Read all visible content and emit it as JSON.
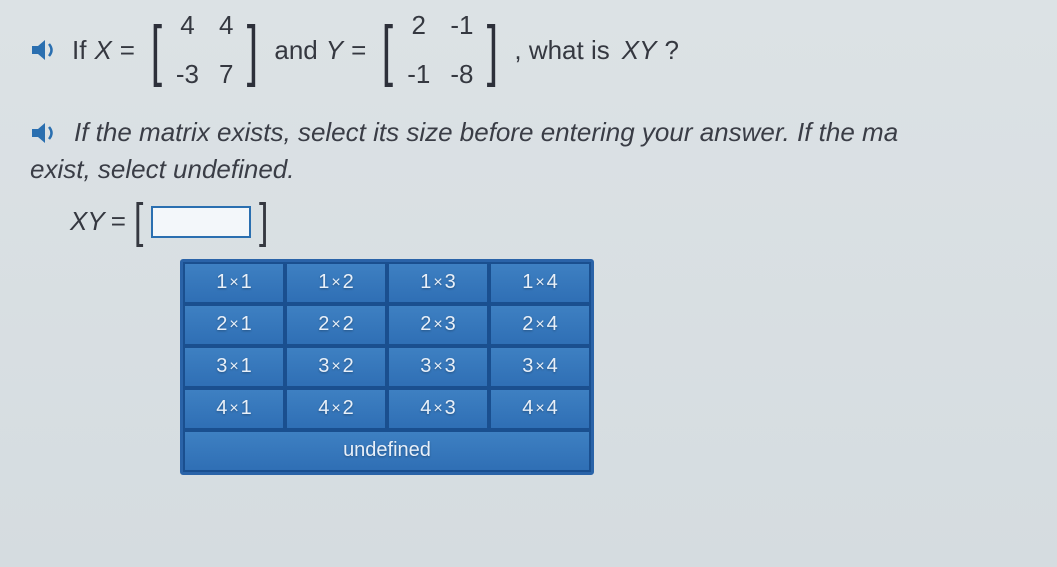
{
  "question": {
    "prefix": "If",
    "var1": "X",
    "eq": "=",
    "matrixX": [
      [
        "4",
        "4"
      ],
      [
        "-3",
        "7"
      ]
    ],
    "mid": "and",
    "var2": "Y",
    "matrixY": [
      [
        "2",
        "-1"
      ],
      [
        "-1",
        "-8"
      ]
    ],
    "suffix": ", what is",
    "target": "XY",
    "qmark": "?"
  },
  "instruction": {
    "line1": "If the matrix exists, select its size before entering your answer. If the ma",
    "line2": "exist, select undefined."
  },
  "answer": {
    "label": "XY",
    "eq": "="
  },
  "sizeGrid": {
    "rows": [
      [
        {
          "r": "1",
          "c": "1"
        },
        {
          "r": "1",
          "c": "2"
        },
        {
          "r": "1",
          "c": "3"
        },
        {
          "r": "1",
          "c": "4"
        }
      ],
      [
        {
          "r": "2",
          "c": "1"
        },
        {
          "r": "2",
          "c": "2"
        },
        {
          "r": "2",
          "c": "3"
        },
        {
          "r": "2",
          "c": "4"
        }
      ],
      [
        {
          "r": "3",
          "c": "1"
        },
        {
          "r": "3",
          "c": "2"
        },
        {
          "r": "3",
          "c": "3"
        },
        {
          "r": "3",
          "c": "4"
        }
      ],
      [
        {
          "r": "4",
          "c": "1"
        },
        {
          "r": "4",
          "c": "2"
        },
        {
          "r": "4",
          "c": "3"
        },
        {
          "r": "4",
          "c": "4"
        }
      ]
    ],
    "undefined": "undefined",
    "times": "×"
  },
  "colors": {
    "buttonBg": "#2f6fb5",
    "buttonBorder": "#1a4f8f",
    "speaker": "#2a6fb0",
    "inputBorder": "#2a6fb0"
  }
}
